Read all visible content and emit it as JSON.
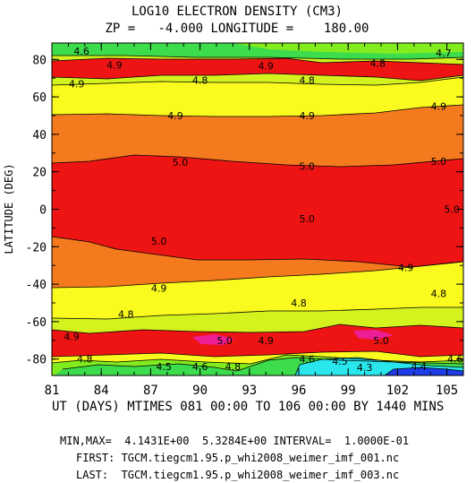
{
  "chart_data": {
    "type": "heatmap",
    "title": "LOG10 ELECTRON DENSITY (CM3)",
    "subtitle": "ZP =   -4.000 LONGITUDE =    180.00",
    "ylabel": "LATITUDE (DEG)",
    "xlabel": "UT (DAYS) MTIMES 081 00:00 TO 106 00:00 BY 1440 MINS",
    "xlim": [
      81,
      106
    ],
    "ylim": [
      -88.75,
      88.75
    ],
    "x_ticks": [
      "81",
      "84",
      "87",
      "90",
      "93",
      "96",
      "99",
      "102",
      "105"
    ],
    "y_ticks": [
      "80",
      "60",
      "40",
      "20",
      "0",
      "-20",
      "-40",
      "-60",
      "-80"
    ],
    "bands": [
      {
        "name": "<4.4",
        "color": "#1e3ce8"
      },
      {
        "name": "4.4-4.5",
        "color": "#28e6ec"
      },
      {
        "name": "4.5-4.6",
        "color": "#3cdc4c"
      },
      {
        "name": "4.6-4.7",
        "color": "#82ec1e"
      },
      {
        "name": "4.7-4.8",
        "color": "#d4f21e"
      },
      {
        "name": "4.8-4.9",
        "color": "#fafa1e"
      },
      {
        "name": "4.9-5.0",
        "color": "#f57a1e"
      },
      {
        "name": "5.0-5.1",
        "color": "#ee1414"
      },
      {
        "name": ">5.1",
        "color": "#ee1e96"
      }
    ],
    "contour_labels": [
      {
        "text": "4.6",
        "x": 82.8,
        "lat": 84.5
      },
      {
        "text": "4.7",
        "x": 104.8,
        "lat": 83.5
      },
      {
        "text": "4.9",
        "x": 84.8,
        "lat": 77
      },
      {
        "text": "4.9",
        "x": 94.0,
        "lat": 76.5
      },
      {
        "text": "4.8",
        "x": 100.8,
        "lat": 78
      },
      {
        "text": "4.9",
        "x": 82.5,
        "lat": 67
      },
      {
        "text": "4.8",
        "x": 90.0,
        "lat": 69
      },
      {
        "text": "4.8",
        "x": 96.5,
        "lat": 69
      },
      {
        "text": "4.9",
        "x": 88.5,
        "lat": 50
      },
      {
        "text": "4.9",
        "x": 96.5,
        "lat": 50
      },
      {
        "text": "4.9",
        "x": 104.5,
        "lat": 55
      },
      {
        "text": "5.0",
        "x": 88.8,
        "lat": 25
      },
      {
        "text": "5.0",
        "x": 96.5,
        "lat": 23
      },
      {
        "text": "5.0",
        "x": 104.5,
        "lat": 25.5
      },
      {
        "text": "5.0",
        "x": 105.3,
        "lat": 0
      },
      {
        "text": "5.0",
        "x": 96.5,
        "lat": -5
      },
      {
        "text": "5.0",
        "x": 87.5,
        "lat": -17
      },
      {
        "text": "4.9",
        "x": 102.5,
        "lat": -31
      },
      {
        "text": "4.9",
        "x": 87.5,
        "lat": -42
      },
      {
        "text": "4.8",
        "x": 104.5,
        "lat": -45
      },
      {
        "text": "4.8",
        "x": 96.0,
        "lat": -50
      },
      {
        "text": "4.8",
        "x": 85.5,
        "lat": -56
      },
      {
        "text": "4.9",
        "x": 82.2,
        "lat": -68
      },
      {
        "text": "5.0",
        "x": 91.5,
        "lat": -70
      },
      {
        "text": "4.9",
        "x": 94.0,
        "lat": -70
      },
      {
        "text": "5.0",
        "x": 101.0,
        "lat": -70
      },
      {
        "text": "4.8",
        "x": 83.0,
        "lat": -80
      },
      {
        "text": "4.6",
        "x": 96.5,
        "lat": -80
      },
      {
        "text": "4.5",
        "x": 98.5,
        "lat": -81
      },
      {
        "text": "4.6",
        "x": 105.5,
        "lat": -80
      },
      {
        "text": "4.5",
        "x": 87.8,
        "lat": -84
      },
      {
        "text": "4.6",
        "x": 90.0,
        "lat": -84
      },
      {
        "text": "4.8",
        "x": 92.0,
        "lat": -84
      },
      {
        "text": "4.3",
        "x": 100.0,
        "lat": -84.5
      },
      {
        "text": "4.4",
        "x": 103.3,
        "lat": -84
      }
    ]
  },
  "footer": {
    "minmax": "MIN,MAX=  4.1431E+00  5.3284E+00 INTERVAL=  1.0000E-01",
    "first": "FIRST: TGCM.tiegcm1.95.p_whi2008_weimer_imf_001.nc",
    "last": "LAST:  TGCM.tiegcm1.95.p_whi2008_weimer_imf_003.nc"
  }
}
